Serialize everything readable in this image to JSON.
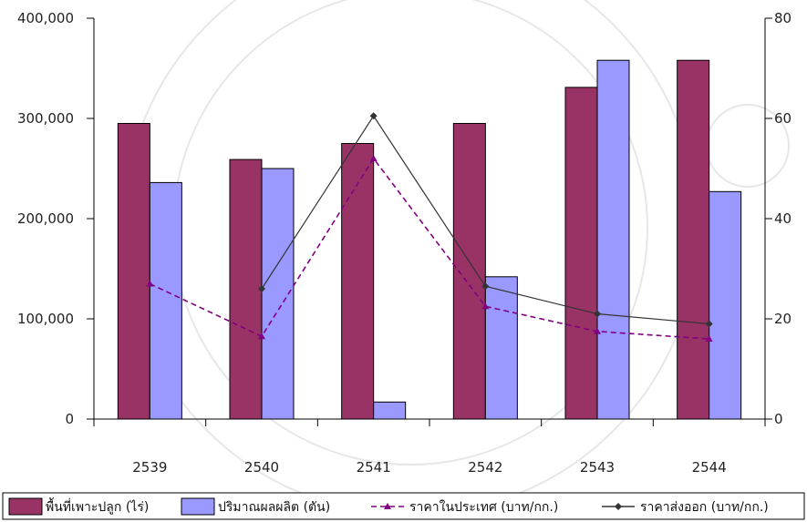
{
  "chart_data": {
    "type": "bar",
    "categories": [
      "2539",
      "2540",
      "2541",
      "2542",
      "2543",
      "2544"
    ],
    "series": [
      {
        "name": "พื้นที่เพาะปลูก (ไร่)",
        "kind": "bar",
        "axis": "left",
        "color": "#993366",
        "values": [
          295000,
          259000,
          275000,
          295000,
          331000,
          358000
        ]
      },
      {
        "name": "ปริมาณผลผลิต (ตัน)",
        "kind": "bar",
        "axis": "left",
        "color": "#9999ff",
        "values": [
          236000,
          250000,
          17000,
          142000,
          358000,
          227000
        ]
      },
      {
        "name": "ราคาในประเทศ (บาท/กก.)",
        "kind": "line",
        "axis": "right",
        "color": "#800080",
        "dash": true,
        "marker": "triangle",
        "values": [
          27,
          16.5,
          52,
          22.5,
          17.5,
          16
        ]
      },
      {
        "name": "ราคาส่งออก (บาท/กก.)",
        "kind": "line",
        "axis": "right",
        "color": "#333333",
        "dash": false,
        "marker": "diamond",
        "values": [
          null,
          26,
          60.5,
          26.5,
          21,
          19
        ]
      }
    ],
    "y_left": {
      "ylim": [
        0,
        400000
      ],
      "ticks": [
        "0",
        "100,000",
        "200,000",
        "300,000",
        "400,000"
      ]
    },
    "y_right": {
      "ylim": [
        0,
        80
      ],
      "ticks": [
        "0",
        "20",
        "40",
        "60",
        "80"
      ]
    },
    "title": "",
    "xlabel": "",
    "ylabel": "",
    "grid": false,
    "legend_position": "bottom"
  }
}
